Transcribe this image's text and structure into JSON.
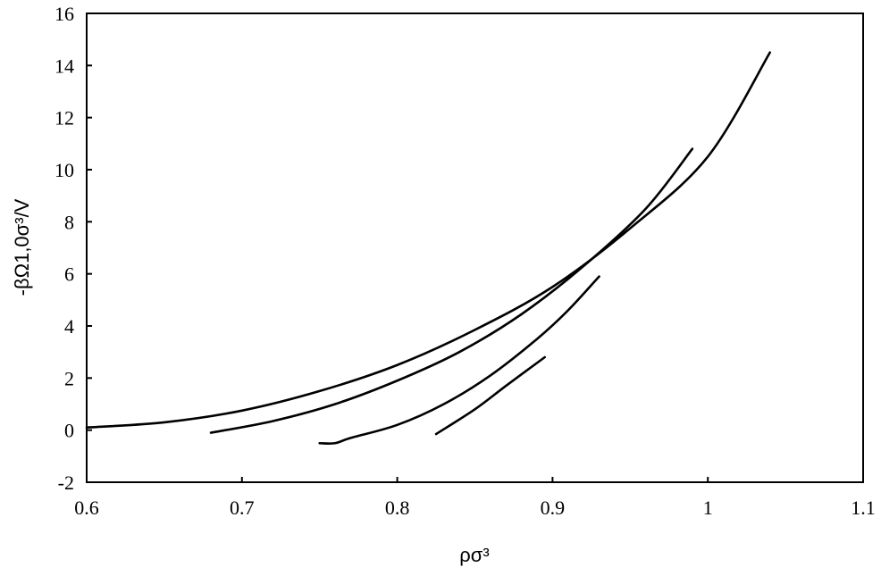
{
  "chart_data": {
    "type": "line",
    "title": "",
    "xlabel": "ρσ³",
    "ylabel": "-βΩ1,0σ³/V",
    "xlim": [
      0.6,
      1.1
    ],
    "ylim": [
      -2,
      16
    ],
    "xticks": [
      "0.6",
      "0.7",
      "0.8",
      "0.9",
      "1",
      "1.1"
    ],
    "yticks": [
      "-2",
      "0",
      "2",
      "4",
      "6",
      "8",
      "10",
      "12",
      "14",
      "16"
    ],
    "grid": false,
    "legend": "none",
    "line_color": "#000000",
    "series": [
      {
        "x": [
          0.6,
          0.65,
          0.7,
          0.75,
          0.8,
          0.85,
          0.9,
          0.95,
          1.0,
          1.04
        ],
        "y": [
          0.1,
          0.3,
          0.75,
          1.5,
          2.5,
          3.85,
          5.5,
          7.75,
          10.5,
          14.5
        ]
      },
      {
        "x": [
          0.68,
          0.72,
          0.76,
          0.8,
          0.84,
          0.88,
          0.92,
          0.96,
          0.99
        ],
        "y": [
          -0.1,
          0.35,
          1.0,
          1.9,
          3.0,
          4.45,
          6.3,
          8.5,
          10.8
        ]
      },
      {
        "x": [
          0.75,
          0.76,
          0.77,
          0.8,
          0.83,
          0.86,
          0.89,
          0.91,
          0.93
        ],
        "y": [
          -0.5,
          -0.5,
          -0.3,
          0.2,
          1.0,
          2.1,
          3.5,
          4.6,
          5.9
        ]
      },
      {
        "x": [
          0.825,
          0.85,
          0.87,
          0.895
        ],
        "y": [
          -0.15,
          0.8,
          1.7,
          2.8
        ]
      }
    ]
  }
}
